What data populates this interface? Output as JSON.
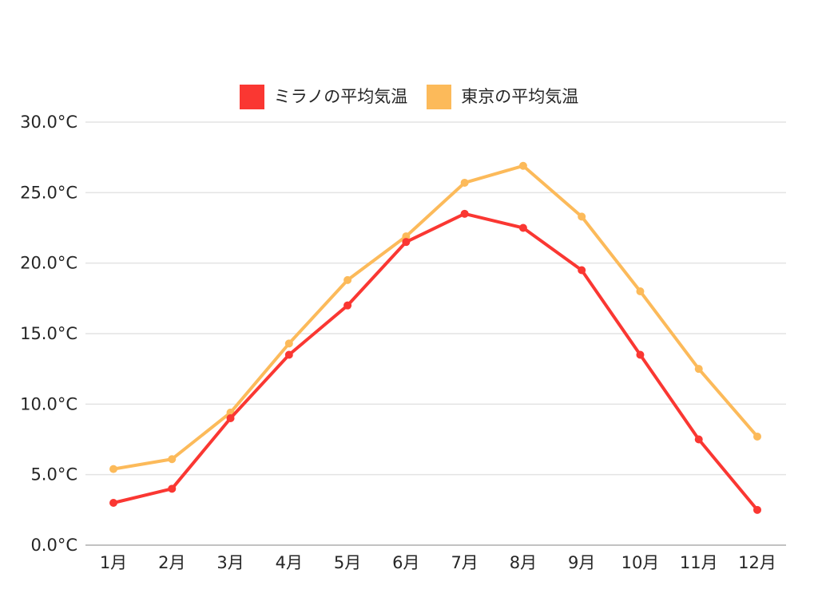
{
  "chart_data": {
    "type": "line",
    "title": "",
    "xlabel": "",
    "ylabel": "",
    "categories": [
      "1月",
      "2月",
      "3月",
      "4月",
      "5月",
      "6月",
      "7月",
      "8月",
      "9月",
      "10月",
      "11月",
      "12月"
    ],
    "series": [
      {
        "name": "ミラノの平均気温",
        "color": "#FA3732",
        "values": [
          3.0,
          4.0,
          9.0,
          13.5,
          17.0,
          21.5,
          23.5,
          22.5,
          19.5,
          13.5,
          7.5,
          2.5
        ]
      },
      {
        "name": "東京の平均気温",
        "color": "#FCBA5A",
        "values": [
          5.4,
          6.1,
          9.4,
          14.3,
          18.8,
          21.9,
          25.7,
          26.9,
          23.3,
          18.0,
          12.5,
          7.7
        ]
      }
    ],
    "ylim": [
      0,
      30
    ],
    "ytick_step": 5,
    "yticks": [
      "0.0°C",
      "5.0°C",
      "10.0°C",
      "15.0°C",
      "20.0°C",
      "25.0°C",
      "30.0°C"
    ],
    "grid": true,
    "legend_position": "top-center",
    "unit": "°C"
  },
  "colors": {
    "gridline": "#e3e3e3",
    "axis_line": "#c2c2c2",
    "tick_text": "#262626",
    "background": "#ffffff"
  }
}
